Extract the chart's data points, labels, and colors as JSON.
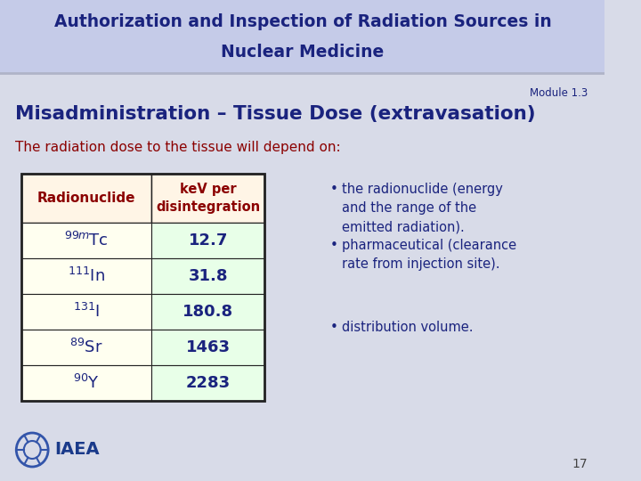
{
  "title_line1": "Authorization and Inspection of Radiation Sources in",
  "title_line2": "Nuclear Medicine",
  "title_bg": "#c5cbe8",
  "title_color": "#1a237e",
  "module_text": "Module 1.3",
  "subtitle": "Misadministration – Tissue Dose (extravasation)",
  "subtitle_color": "#1a237e",
  "body_bg": "#d8dbe8",
  "intro_text": "The radiation dose to the tissue will depend on:",
  "intro_color": "#8b0000",
  "table_header_bg": "#fff5e6",
  "table_header_text_color": "#8b0000",
  "table_row_bg1": "#fffff0",
  "table_row_bg2": "#e8ffe8",
  "table_border_color": "#222222",
  "table_value_color": "#1a237e",
  "table_nuclide_color": "#1a237e",
  "col1_header": "Radionuclide",
  "col2_header": "keV per\ndisintegration",
  "nuclide_labels": [
    "$^{99m}$Tc",
    "$^{111}$In",
    "$^{131}$I",
    "$^{89}$Sr",
    "$^{90}$Y"
  ],
  "values": [
    "12.7",
    "31.8",
    "180.8",
    "1463",
    "2283"
  ],
  "bullet_points": [
    "the radionuclide (energy\nand the range of the\nemitted radiation).",
    "pharmaceutical (clearance\nrate from injection site).",
    "distribution volume."
  ],
  "bullet_color": "#1a237e",
  "page_number": "17",
  "iaea_text": "IAEA",
  "separator_color": "#b0b4c8"
}
